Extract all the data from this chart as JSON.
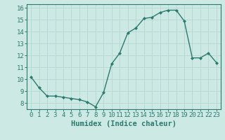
{
  "xlabel": "Humidex (Indice chaleur)",
  "ylabel": "",
  "x": [
    0,
    1,
    2,
    3,
    4,
    5,
    6,
    7,
    8,
    9,
    10,
    11,
    12,
    13,
    14,
    15,
    16,
    17,
    18,
    19,
    20,
    21,
    22,
    23
  ],
  "y": [
    10.2,
    9.3,
    8.6,
    8.6,
    8.5,
    8.4,
    8.3,
    8.1,
    7.7,
    8.9,
    11.3,
    12.2,
    13.9,
    14.3,
    15.1,
    15.2,
    15.6,
    15.8,
    15.8,
    14.9,
    11.8,
    11.8,
    12.2,
    11.4
  ],
  "line_color": "#2d7a6e",
  "marker_color": "#2d7a6e",
  "bg_color": "#cce9e4",
  "grid_color": "#b8d8d3",
  "ylim_min": 7.5,
  "ylim_max": 16.3,
  "xlim_min": -0.5,
  "xlim_max": 23.5,
  "yticks": [
    8,
    9,
    10,
    11,
    12,
    13,
    14,
    15,
    16
  ],
  "xticks": [
    0,
    1,
    2,
    3,
    4,
    5,
    6,
    7,
    8,
    9,
    10,
    11,
    12,
    13,
    14,
    15,
    16,
    17,
    18,
    19,
    20,
    21,
    22,
    23
  ],
  "tick_fontsize": 6.5,
  "label_fontsize": 7.5
}
